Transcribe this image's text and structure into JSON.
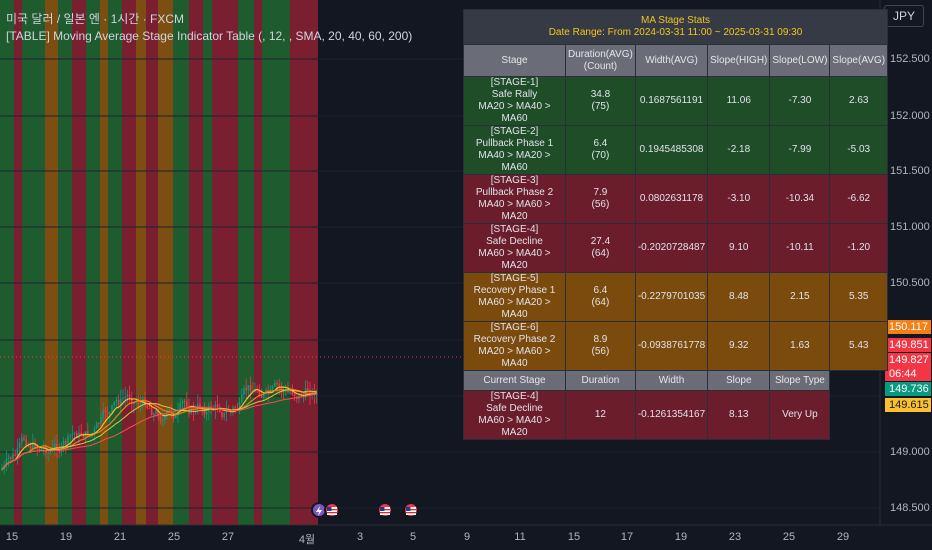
{
  "header": {
    "line1": "미국 달러 / 일본 엔 · 1시간 · FXCM",
    "line2": "[TABLE] Moving Average Stage Indicator Table (, 12, , SMA, 20, 40, 60, 200)"
  },
  "currency_button": "JPY",
  "price_axis": [
    "152.500",
    "152.000",
    "151.500",
    "151.000",
    "150.500",
    "149.000",
    "148.500"
  ],
  "price_tags": [
    {
      "value": "150.117",
      "color": "#f57f17"
    },
    {
      "value": "149.851",
      "color": "#f23645"
    },
    {
      "value": "149.827",
      "color": "#f23645"
    },
    {
      "value": "06:44",
      "color": "#f23645"
    },
    {
      "value": "149.736",
      "color": "#089981"
    },
    {
      "value": "149.615",
      "color": "#fbc02d"
    }
  ],
  "time_axis": [
    "15",
    "19",
    "21",
    "25",
    "27",
    "4월",
    "3",
    "5",
    "9",
    "11",
    "15",
    "17",
    "19",
    "23",
    "25",
    "29"
  ],
  "colors": {
    "green_band": "#1e5b2f",
    "red_band": "#7a1f2f",
    "orange_band": "#7d4e12",
    "candle_up": "#089981",
    "candle_down": "#f23645"
  },
  "table": {
    "title": "MA Stage Stats",
    "subtitle": "Date Range: From 2024-03-31 11:00 ~ 2025-03-31 09:30",
    "headers": [
      "Stage",
      "Duration(AVG)",
      "(Count)",
      "Width(AVG)",
      "Slope(HIGH)",
      "Slope(LOW)",
      "Slope(AVG)"
    ],
    "rows": [
      {
        "stage": "[STAGE-1]",
        "name": "Safe Rally",
        "order": "MA20 > MA40 > MA60",
        "duration": "34.8",
        "count": "(75)",
        "width": "0.1687561191",
        "slope_high": "11.06",
        "slope_low": "-7.30",
        "slope_avg": "2.63"
      },
      {
        "stage": "[STAGE-2]",
        "name": "Pullback Phase 1",
        "order": "MA40 > MA20 > MA60",
        "duration": "6.4",
        "count": "(70)",
        "width": "0.1945485308",
        "slope_high": "-2.18",
        "slope_low": "-7.99",
        "slope_avg": "-5.03"
      },
      {
        "stage": "[STAGE-3]",
        "name": "Pullback Phase 2",
        "order": "MA40 > MA60 > MA20",
        "duration": "7.9",
        "count": "(56)",
        "width": "0.0802631178",
        "slope_high": "-3.10",
        "slope_low": "-10.34",
        "slope_avg": "-6.62"
      },
      {
        "stage": "[STAGE-4]",
        "name": "Safe Decline",
        "order": "MA60 > MA40 > MA20",
        "duration": "27.4",
        "count": "(64)",
        "width": "-0.2020728487",
        "slope_high": "9.10",
        "slope_low": "-10.11",
        "slope_avg": "-1.20"
      },
      {
        "stage": "[STAGE-5]",
        "name": "Recovery Phase 1",
        "order": "MA60 > MA20 > MA40",
        "duration": "6.4",
        "count": "(64)",
        "width": "-0.2279701035",
        "slope_high": "8.48",
        "slope_low": "2.15",
        "slope_avg": "5.35"
      },
      {
        "stage": "[STAGE-6]",
        "name": "Recovery Phase 2",
        "order": "MA20 > MA60 > MA40",
        "duration": "8.9",
        "count": "(56)",
        "width": "-0.0938761778",
        "slope_high": "9.32",
        "slope_low": "1.63",
        "slope_avg": "5.43"
      }
    ],
    "current_headers": [
      "Current Stage",
      "Duration",
      "Width",
      "Slope",
      "Slope Type"
    ],
    "current": {
      "stage": "[STAGE-4]",
      "name": "Safe Decline",
      "order": "MA60 > MA40 > MA20",
      "duration": "12",
      "width": "-0.1261354167",
      "slope": "8.13",
      "slope_type": "Very Up"
    }
  },
  "events": [
    {
      "kind": "lightning-icon",
      "color": "#7e57c2"
    },
    {
      "kind": "us-flag-icon",
      "color": "#f23645"
    },
    {
      "kind": "us-flag-icon",
      "color": "#f23645"
    },
    {
      "kind": "us-flag-icon",
      "color": "#f23645"
    }
  ]
}
